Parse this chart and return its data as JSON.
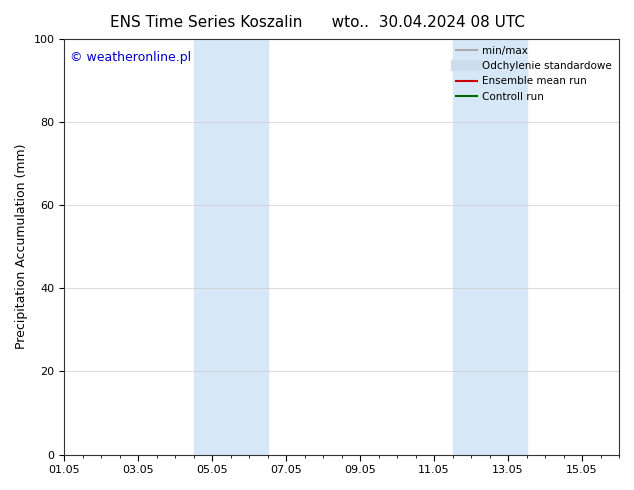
{
  "title_left": "ENS Time Series Koszalin",
  "title_right": "wto..  30.04.2024 08 UTC",
  "ylabel": "Precipitation Accumulation (mm)",
  "ylim": [
    0,
    100
  ],
  "yticks": [
    0,
    20,
    40,
    60,
    80,
    100
  ],
  "total_days": 15,
  "xtick_labels": [
    "01.05",
    "03.05",
    "05.05",
    "07.05",
    "09.05",
    "11.05",
    "13.05",
    "15.05"
  ],
  "xtick_positions_days": [
    0,
    2,
    4,
    6,
    8,
    10,
    12,
    14
  ],
  "shaded_regions": [
    {
      "start_day": 3.5,
      "end_day": 5.5,
      "color": "#d6e8f7"
    },
    {
      "start_day": 10.5,
      "end_day": 12.5,
      "color": "#d6e8f7"
    }
  ],
  "watermark_text": "© weatheronline.pl",
  "watermark_color": "#0000cc",
  "watermark_fontsize": 9,
  "legend_entries": [
    {
      "label": "min/max",
      "color": "#aaaaaa",
      "lw": 1.5,
      "style": "-"
    },
    {
      "label": "Odchylenie standardowe",
      "color": "#ccddee",
      "lw": 8,
      "style": "-"
    },
    {
      "label": "Ensemble mean run",
      "color": "#cc0000",
      "lw": 1.5,
      "style": "-"
    },
    {
      "label": "Controll run",
      "color": "#006600",
      "lw": 1.5,
      "style": "-"
    }
  ],
  "background_color": "#ffffff",
  "plot_bg_color": "#ffffff",
  "grid_color": "#cccccc",
  "title_fontsize": 11,
  "tick_fontsize": 8,
  "ylabel_fontsize": 9
}
